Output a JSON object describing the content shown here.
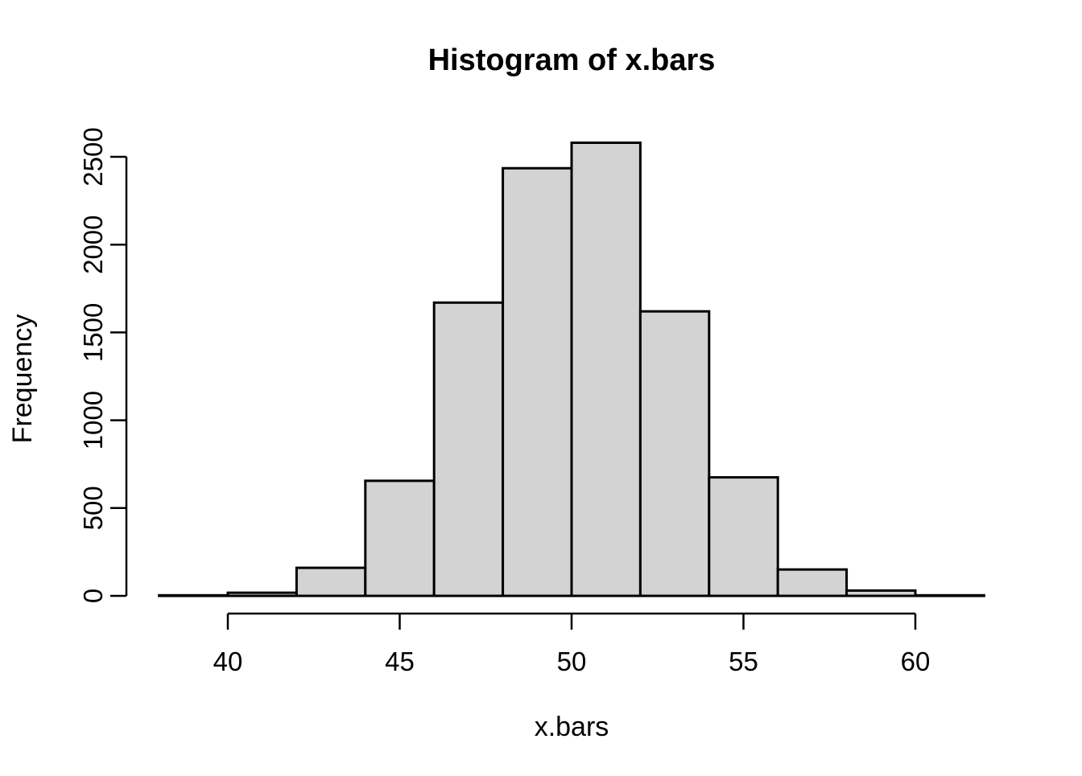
{
  "figure": {
    "background": "#ffffff"
  },
  "chart_data": {
    "type": "bar",
    "subtype": "histogram",
    "title": "Histogram of x.bars",
    "xlabel": "x.bars",
    "ylabel": "Frequency",
    "bin_edges": [
      38,
      40,
      42,
      44,
      46,
      48,
      50,
      52,
      54,
      56,
      58,
      60,
      62
    ],
    "counts": [
      3,
      18,
      160,
      655,
      1670,
      2435,
      2580,
      1620,
      675,
      150,
      30,
      3
    ],
    "x_ticks": [
      40,
      45,
      50,
      55,
      60
    ],
    "y_ticks": [
      0,
      500,
      1000,
      1500,
      2000,
      2500
    ],
    "xlim": [
      38,
      62
    ],
    "ylim": [
      0,
      2500
    ],
    "grid": false,
    "legend": "none",
    "bar_fill": "#d3d3d3",
    "bar_stroke": "#000000",
    "axis_color": "#000000",
    "text_color": "#000000"
  }
}
